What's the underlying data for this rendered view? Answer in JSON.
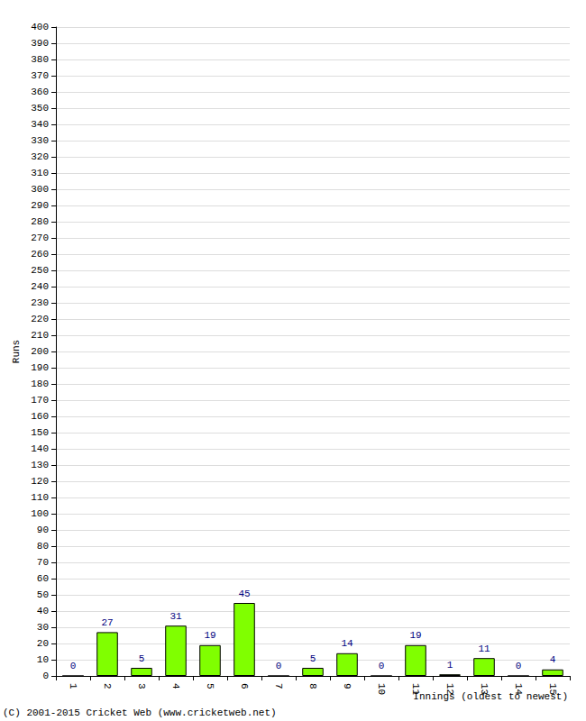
{
  "chart_data": {
    "type": "bar",
    "categories": [
      "1",
      "2",
      "3",
      "4",
      "5",
      "6",
      "7",
      "8",
      "9",
      "10",
      "11",
      "12",
      "13",
      "14",
      "15"
    ],
    "values": [
      0,
      27,
      5,
      31,
      19,
      45,
      0,
      5,
      14,
      0,
      19,
      1,
      11,
      0,
      4
    ],
    "color": "#80ff00",
    "x_label": "Innings (oldest to newest)",
    "y_label": "Runs",
    "annotations": [
      "(C) 2001-2015 Cricket Web (www.cricketweb.net)"
    ],
    "ylim": [
      0,
      400
    ],
    "yticks": [
      0,
      10,
      20,
      30,
      40,
      50,
      60,
      70,
      80,
      90,
      100,
      110,
      120,
      130,
      140,
      150,
      160,
      170,
      180,
      190,
      200,
      210,
      220,
      230,
      240,
      250,
      260,
      270,
      280,
      290,
      300,
      310,
      320,
      330,
      340,
      350,
      360,
      370,
      380,
      390,
      400
    ],
    "grid": true,
    "data_labels": true
  }
}
